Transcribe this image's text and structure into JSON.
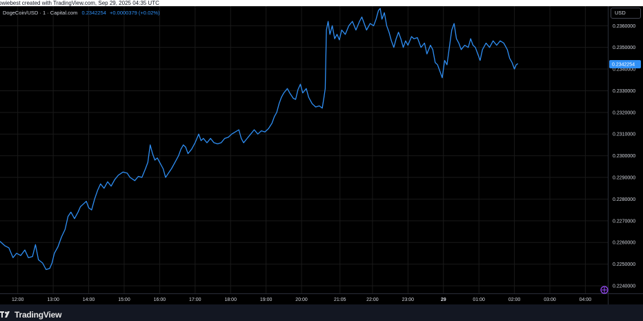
{
  "header": {
    "caption": "owiebest created with TradingView.com, Sep 29, 2025 04:35 UTC"
  },
  "legend": {
    "symbol": "DogeCoin/USD · 1 · Capital.com",
    "price": "0.2342254",
    "change": "+0.0000379 (+0.02%)"
  },
  "currency_button": "USD",
  "footer": {
    "brand": "TradingView"
  },
  "colors": {
    "background": "#000000",
    "line": "#2f8ff5",
    "grid": "#1a1a1a",
    "price_tag": "#2f8ff5"
  },
  "chart_data": {
    "type": "line",
    "title": "",
    "xlabel": "",
    "ylabel": "",
    "grid": true,
    "legend": "top-left",
    "y_axis_position": "right",
    "ylim": [
      0.22365,
      0.2369
    ],
    "xlim": [
      "11:30",
      "04:38"
    ],
    "y_ticks": [
      "0.2240000",
      "0.2250000",
      "0.2260000",
      "0.2270000",
      "0.2280000",
      "0.2290000",
      "0.2300000",
      "0.2310000",
      "0.2320000",
      "0.2330000",
      "0.2340000",
      "0.2350000",
      "0.2360000"
    ],
    "x_ticks": [
      {
        "label": "12:00",
        "minute": 30
      },
      {
        "label": "13:00",
        "minute": 90
      },
      {
        "label": "14:00",
        "minute": 150
      },
      {
        "label": "15:00",
        "minute": 210
      },
      {
        "label": "16:00",
        "minute": 270
      },
      {
        "label": "17:00",
        "minute": 330
      },
      {
        "label": "18:00",
        "minute": 390
      },
      {
        "label": "19:00",
        "minute": 450
      },
      {
        "label": "20:00",
        "minute": 510
      },
      {
        "label": "21:05",
        "minute": 575
      },
      {
        "label": "22:00",
        "minute": 630
      },
      {
        "label": "23:00",
        "minute": 690
      },
      {
        "label": "29",
        "minute": 750,
        "bold": true
      },
      {
        "label": "01:00",
        "minute": 810
      },
      {
        "label": "02:00",
        "minute": 870
      },
      {
        "label": "03:00",
        "minute": 930
      },
      {
        "label": "04:00",
        "minute": 990
      }
    ],
    "last_price_label": "0.2342254",
    "series": [
      {
        "x_unit": "minutes since 11:30",
        "points": [
          [
            0,
            0.22605
          ],
          [
            8,
            0.22585
          ],
          [
            15,
            0.22575
          ],
          [
            22,
            0.2253
          ],
          [
            28,
            0.2255
          ],
          [
            35,
            0.2254
          ],
          [
            42,
            0.22565
          ],
          [
            48,
            0.2253
          ],
          [
            55,
            0.22535
          ],
          [
            60,
            0.2259
          ],
          [
            65,
            0.2252
          ],
          [
            72,
            0.22505
          ],
          [
            78,
            0.22475
          ],
          [
            84,
            0.2248
          ],
          [
            88,
            0.22505
          ],
          [
            92,
            0.2255
          ],
          [
            98,
            0.2258
          ],
          [
            104,
            0.22625
          ],
          [
            110,
            0.2266
          ],
          [
            115,
            0.2272
          ],
          [
            120,
            0.2274
          ],
          [
            126,
            0.2271
          ],
          [
            132,
            0.2274
          ],
          [
            136,
            0.22765
          ],
          [
            140,
            0.22775
          ],
          [
            146,
            0.2279
          ],
          [
            150,
            0.2276
          ],
          [
            155,
            0.2275
          ],
          [
            160,
            0.228
          ],
          [
            165,
            0.2284
          ],
          [
            170,
            0.2287
          ],
          [
            176,
            0.2285
          ],
          [
            182,
            0.2288
          ],
          [
            188,
            0.2286
          ],
          [
            194,
            0.2289
          ],
          [
            200,
            0.2291
          ],
          [
            208,
            0.22925
          ],
          [
            215,
            0.2292
          ],
          [
            220,
            0.229
          ],
          [
            228,
            0.22885
          ],
          [
            234,
            0.22905
          ],
          [
            240,
            0.229
          ],
          [
            246,
            0.2294
          ],
          [
            250,
            0.2297
          ],
          [
            254,
            0.2305
          ],
          [
            258,
            0.2301
          ],
          [
            262,
            0.2298
          ],
          [
            266,
            0.2299
          ],
          [
            270,
            0.2297
          ],
          [
            276,
            0.2294
          ],
          [
            280,
            0.229
          ],
          [
            285,
            0.2292
          ],
          [
            290,
            0.2294
          ],
          [
            296,
            0.2297
          ],
          [
            302,
            0.23
          ],
          [
            306,
            0.2303
          ],
          [
            310,
            0.2305
          ],
          [
            314,
            0.2304
          ],
          [
            318,
            0.2301
          ],
          [
            324,
            0.2303
          ],
          [
            330,
            0.2306
          ],
          [
            336,
            0.231
          ],
          [
            340,
            0.2307
          ],
          [
            344,
            0.2308
          ],
          [
            350,
            0.2306
          ],
          [
            356,
            0.2308
          ],
          [
            362,
            0.2306
          ],
          [
            368,
            0.23055
          ],
          [
            374,
            0.2306
          ],
          [
            380,
            0.2308
          ],
          [
            386,
            0.23085
          ],
          [
            392,
            0.231
          ],
          [
            398,
            0.2311
          ],
          [
            404,
            0.2312
          ],
          [
            408,
            0.2308
          ],
          [
            412,
            0.2306
          ],
          [
            418,
            0.2308
          ],
          [
            424,
            0.231
          ],
          [
            430,
            0.2312
          ],
          [
            436,
            0.231
          ],
          [
            442,
            0.23115
          ],
          [
            448,
            0.2311
          ],
          [
            454,
            0.23125
          ],
          [
            460,
            0.2315
          ],
          [
            464,
            0.2318
          ],
          [
            468,
            0.232
          ],
          [
            472,
            0.2324
          ],
          [
            476,
            0.2327
          ],
          [
            480,
            0.2329
          ],
          [
            486,
            0.2331
          ],
          [
            490,
            0.2329
          ],
          [
            496,
            0.23265
          ],
          [
            500,
            0.2326
          ],
          [
            504,
            0.23305
          ],
          [
            508,
            0.2333
          ],
          [
            512,
            0.2329
          ],
          [
            518,
            0.2331
          ],
          [
            522,
            0.2327
          ],
          [
            528,
            0.2324
          ],
          [
            534,
            0.23225
          ],
          [
            540,
            0.2323
          ],
          [
            545,
            0.2322
          ],
          [
            548,
            0.2327
          ],
          [
            550,
            0.2331
          ],
          [
            552,
            0.2358
          ],
          [
            555,
            0.2362
          ],
          [
            558,
            0.2356
          ],
          [
            562,
            0.236
          ],
          [
            566,
            0.2354
          ],
          [
            570,
            0.2356
          ],
          [
            574,
            0.23535
          ],
          [
            578,
            0.2358
          ],
          [
            584,
            0.2356
          ],
          [
            590,
            0.236
          ],
          [
            596,
            0.2362
          ],
          [
            602,
            0.2358
          ],
          [
            608,
            0.2362
          ],
          [
            612,
            0.2364
          ],
          [
            616,
            0.2361
          ],
          [
            620,
            0.2358
          ],
          [
            626,
            0.2361
          ],
          [
            632,
            0.236
          ],
          [
            636,
            0.2363
          ],
          [
            640,
            0.2367
          ],
          [
            643,
            0.2368
          ],
          [
            646,
            0.2363
          ],
          [
            650,
            0.2366
          ],
          [
            654,
            0.236
          ],
          [
            658,
            0.2357
          ],
          [
            662,
            0.2353
          ],
          [
            666,
            0.235
          ],
          [
            670,
            0.2354
          ],
          [
            674,
            0.2357
          ],
          [
            678,
            0.2354
          ],
          [
            682,
            0.235
          ],
          [
            686,
            0.2353
          ],
          [
            690,
            0.2351
          ],
          [
            696,
            0.2355
          ],
          [
            700,
            0.2354
          ],
          [
            706,
            0.23545
          ],
          [
            712,
            0.235
          ],
          [
            718,
            0.2352
          ],
          [
            722,
            0.2347
          ],
          [
            728,
            0.2351
          ],
          [
            732,
            0.2349
          ],
          [
            736,
            0.2343
          ],
          [
            740,
            0.2342
          ],
          [
            744,
            0.2339
          ],
          [
            748,
            0.2336
          ],
          [
            752,
            0.2344
          ],
          [
            756,
            0.2342
          ],
          [
            760,
            0.235
          ],
          [
            764,
            0.2358
          ],
          [
            768,
            0.2361
          ],
          [
            772,
            0.2354
          ],
          [
            776,
            0.2352
          ],
          [
            780,
            0.2349
          ],
          [
            786,
            0.2351
          ],
          [
            792,
            0.235
          ],
          [
            796,
            0.2354
          ],
          [
            800,
            0.2351
          ],
          [
            804,
            0.235
          ],
          [
            808,
            0.2347
          ],
          [
            812,
            0.2344
          ],
          [
            816,
            0.2349
          ],
          [
            822,
            0.2352
          ],
          [
            828,
            0.235
          ],
          [
            834,
            0.2353
          ],
          [
            840,
            0.2351
          ],
          [
            846,
            0.2353
          ],
          [
            852,
            0.2352
          ],
          [
            858,
            0.2349
          ],
          [
            862,
            0.2345
          ],
          [
            866,
            0.2343
          ],
          [
            870,
            0.234
          ],
          [
            873,
            0.2342
          ],
          [
            876,
            0.23425
          ]
        ]
      }
    ]
  }
}
